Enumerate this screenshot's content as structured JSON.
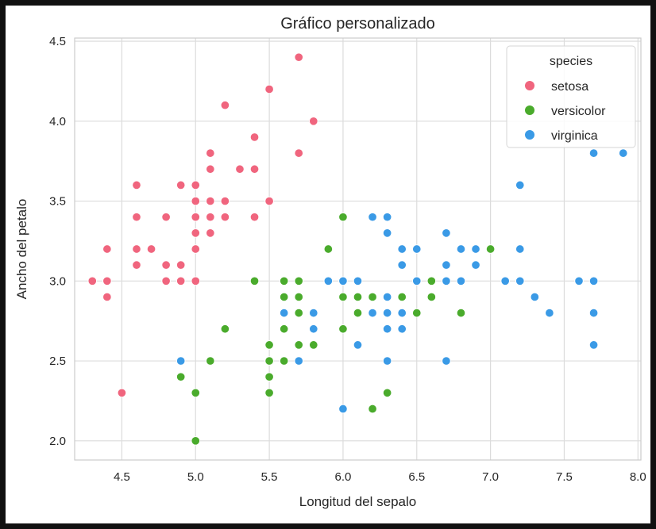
{
  "chart_data": {
    "type": "scatter",
    "title": "Gráfico personalizado",
    "xlabel": "Longitud del sepalo",
    "ylabel": "Ancho del petalo",
    "xlim": [
      4.18,
      8.02
    ],
    "ylim": [
      1.88,
      4.52
    ],
    "xticks": [
      "4.5",
      "5.0",
      "5.5",
      "6.0",
      "6.5",
      "7.0",
      "7.5",
      "8.0"
    ],
    "yticks": [
      "2.0",
      "2.5",
      "3.0",
      "3.5",
      "4.0",
      "4.5"
    ],
    "grid": true,
    "legend": {
      "title": "species",
      "placement": "top-right"
    },
    "series": [
      {
        "name": "setosa",
        "color": "#f0657e",
        "points": [
          [
            4.3,
            3.0
          ],
          [
            4.4,
            3.2
          ],
          [
            4.4,
            3.0
          ],
          [
            4.4,
            2.9
          ],
          [
            4.5,
            2.3
          ],
          [
            4.6,
            3.6
          ],
          [
            4.6,
            3.4
          ],
          [
            4.6,
            3.2
          ],
          [
            4.6,
            3.1
          ],
          [
            4.7,
            3.2
          ],
          [
            4.8,
            3.4
          ],
          [
            4.8,
            3.1
          ],
          [
            4.8,
            3.0
          ],
          [
            4.9,
            3.6
          ],
          [
            4.9,
            3.1
          ],
          [
            4.9,
            3.0
          ],
          [
            5.0,
            3.6
          ],
          [
            5.0,
            3.5
          ],
          [
            5.0,
            3.4
          ],
          [
            5.0,
            3.3
          ],
          [
            5.0,
            3.2
          ],
          [
            5.0,
            3.0
          ],
          [
            5.1,
            3.8
          ],
          [
            5.1,
            3.7
          ],
          [
            5.1,
            3.5
          ],
          [
            5.1,
            3.4
          ],
          [
            5.1,
            3.3
          ],
          [
            5.2,
            4.1
          ],
          [
            5.2,
            3.5
          ],
          [
            5.2,
            3.4
          ],
          [
            5.3,
            3.7
          ],
          [
            5.4,
            3.9
          ],
          [
            5.4,
            3.7
          ],
          [
            5.4,
            3.4
          ],
          [
            5.5,
            4.2
          ],
          [
            5.5,
            3.5
          ],
          [
            5.7,
            4.4
          ],
          [
            5.7,
            3.8
          ],
          [
            5.8,
            4.0
          ]
        ]
      },
      {
        "name": "versicolor",
        "color": "#4aab2c",
        "points": [
          [
            4.9,
            2.4
          ],
          [
            5.0,
            2.3
          ],
          [
            5.0,
            2.0
          ],
          [
            5.1,
            2.5
          ],
          [
            5.2,
            2.7
          ],
          [
            5.4,
            3.0
          ],
          [
            5.5,
            2.6
          ],
          [
            5.5,
            2.5
          ],
          [
            5.5,
            2.4
          ],
          [
            5.5,
            2.3
          ],
          [
            5.6,
            3.0
          ],
          [
            5.6,
            2.9
          ],
          [
            5.6,
            2.7
          ],
          [
            5.6,
            2.5
          ],
          [
            5.7,
            3.0
          ],
          [
            5.7,
            2.9
          ],
          [
            5.7,
            2.8
          ],
          [
            5.7,
            2.6
          ],
          [
            5.8,
            2.6
          ],
          [
            5.9,
            3.2
          ],
          [
            6.0,
            3.4
          ],
          [
            6.0,
            2.9
          ],
          [
            6.0,
            2.7
          ],
          [
            6.1,
            2.9
          ],
          [
            6.1,
            2.8
          ],
          [
            6.2,
            2.9
          ],
          [
            6.2,
            2.2
          ],
          [
            6.3,
            2.3
          ],
          [
            6.4,
            2.9
          ],
          [
            6.5,
            2.8
          ],
          [
            6.6,
            3.0
          ],
          [
            6.6,
            2.9
          ],
          [
            6.8,
            2.8
          ],
          [
            7.0,
            3.2
          ]
        ]
      },
      {
        "name": "virginica",
        "color": "#3a9ae6",
        "points": [
          [
            4.9,
            2.5
          ],
          [
            5.6,
            2.8
          ],
          [
            5.7,
            2.5
          ],
          [
            5.8,
            2.8
          ],
          [
            5.8,
            2.7
          ],
          [
            5.9,
            3.0
          ],
          [
            6.0,
            3.0
          ],
          [
            6.0,
            2.2
          ],
          [
            6.1,
            3.0
          ],
          [
            6.1,
            2.6
          ],
          [
            6.2,
            3.4
          ],
          [
            6.2,
            2.8
          ],
          [
            6.3,
            3.4
          ],
          [
            6.3,
            3.3
          ],
          [
            6.3,
            2.9
          ],
          [
            6.3,
            2.8
          ],
          [
            6.3,
            2.7
          ],
          [
            6.3,
            2.5
          ],
          [
            6.4,
            3.2
          ],
          [
            6.4,
            3.1
          ],
          [
            6.4,
            2.8
          ],
          [
            6.4,
            2.7
          ],
          [
            6.5,
            3.2
          ],
          [
            6.5,
            3.0
          ],
          [
            6.7,
            3.3
          ],
          [
            6.7,
            3.1
          ],
          [
            6.7,
            3.0
          ],
          [
            6.7,
            2.5
          ],
          [
            6.8,
            3.2
          ],
          [
            6.8,
            3.0
          ],
          [
            6.9,
            3.2
          ],
          [
            6.9,
            3.1
          ],
          [
            7.1,
            3.0
          ],
          [
            7.2,
            3.6
          ],
          [
            7.2,
            3.2
          ],
          [
            7.2,
            3.0
          ],
          [
            7.3,
            2.9
          ],
          [
            7.4,
            2.8
          ],
          [
            7.6,
            3.0
          ],
          [
            7.7,
            3.8
          ],
          [
            7.7,
            3.0
          ],
          [
            7.7,
            2.8
          ],
          [
            7.7,
            2.6
          ],
          [
            7.9,
            3.8
          ]
        ]
      }
    ]
  }
}
